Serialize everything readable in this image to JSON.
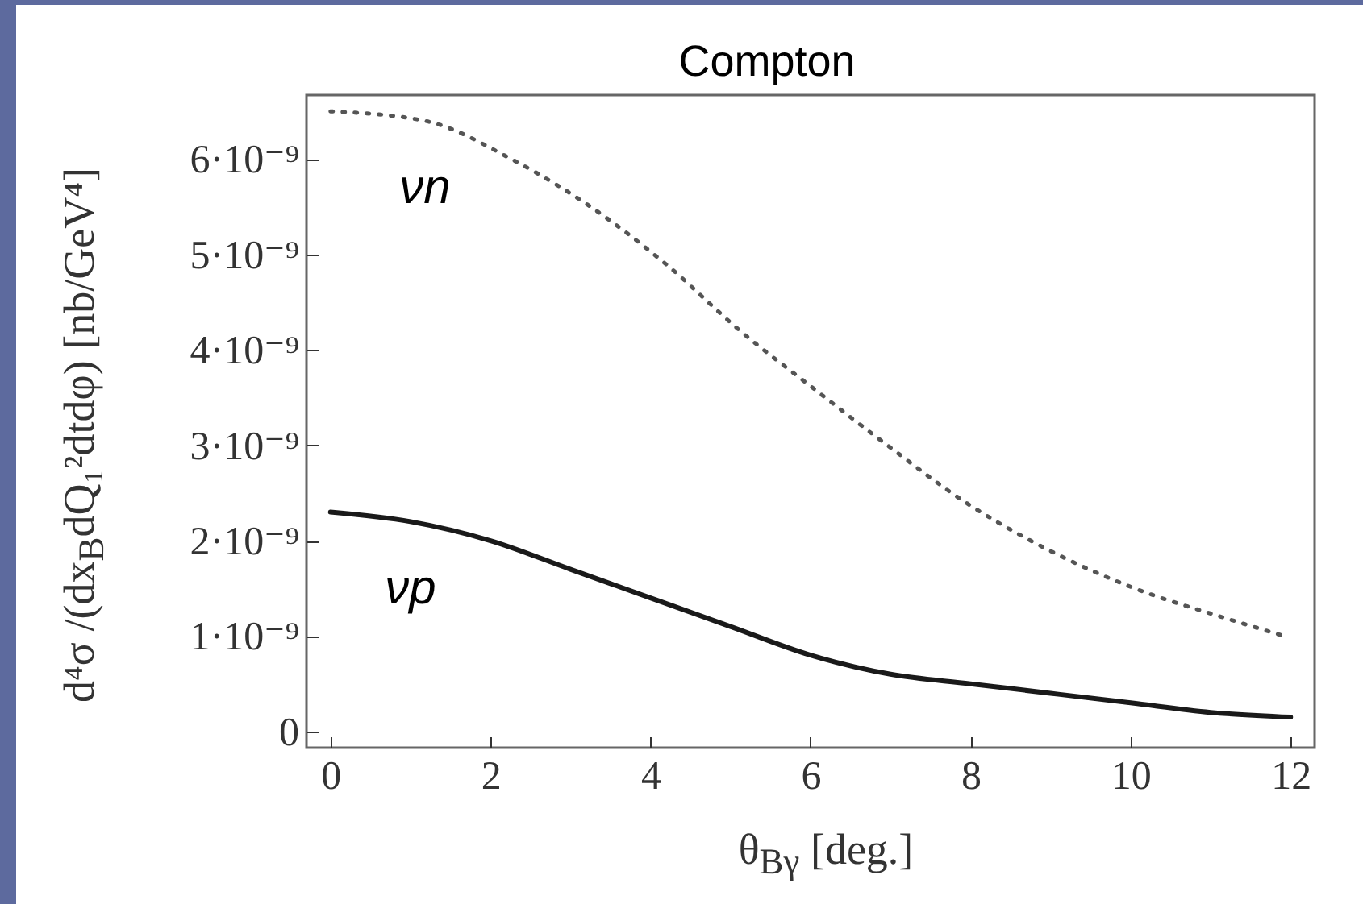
{
  "chart_data": {
    "type": "line",
    "title": "Compton",
    "xlabel": "θ$_{Bγ}$ [deg.]",
    "ylabel": "d⁴σ /(dx$_{B}$dQ₁²dtdφ) [nb/GeV⁴]",
    "xlim": [
      -0.3,
      12.3
    ],
    "xticks": [
      0,
      2,
      4,
      6,
      8,
      10,
      12
    ],
    "ylim": [
      -1.7e-10,
      6.67e-09
    ],
    "yticks": [
      0,
      {
        "value": 1e-09,
        "label": "1·10⁻⁹"
      },
      {
        "value": 2e-09,
        "label": "2·10⁻⁹"
      },
      {
        "value": 3e-09,
        "label": "3·10⁻⁹"
      },
      {
        "value": 4e-09,
        "label": "4·10⁻⁹"
      },
      {
        "value": 5e-09,
        "label": "5·10⁻⁹"
      },
      {
        "value": 6e-09,
        "label": "6·10⁻⁹"
      }
    ],
    "grid": false,
    "legend": false,
    "series": [
      {
        "name": "νn",
        "color": "#555555",
        "line_style": "dotted",
        "x": [
          0,
          1.18,
          2.26,
          3.25,
          4.19,
          5.12,
          6.03,
          6.96,
          7.94,
          8.98,
          10.05,
          11.14,
          11.92
        ],
        "values": [
          6.5e-09,
          6.4e-09,
          6e-09,
          5.5e-09,
          4.9e-09,
          4.2e-09,
          3.6e-09,
          3e-09,
          2.4e-09,
          1.9e-09,
          1.5e-09,
          1.2e-09,
          1e-09
        ]
      },
      {
        "name": "νp",
        "color": "#1a1a1a",
        "line_style": "solid",
        "x": [
          0,
          1,
          2,
          3,
          4,
          5,
          6,
          7,
          8,
          9,
          10,
          11,
          12
        ],
        "values": [
          2.3e-09,
          2.2e-09,
          2e-09,
          1.7e-09,
          1.4e-09,
          1.1e-09,
          8e-10,
          6e-10,
          5e-10,
          4e-10,
          3e-10,
          2e-10,
          1.5e-10
        ]
      }
    ]
  }
}
